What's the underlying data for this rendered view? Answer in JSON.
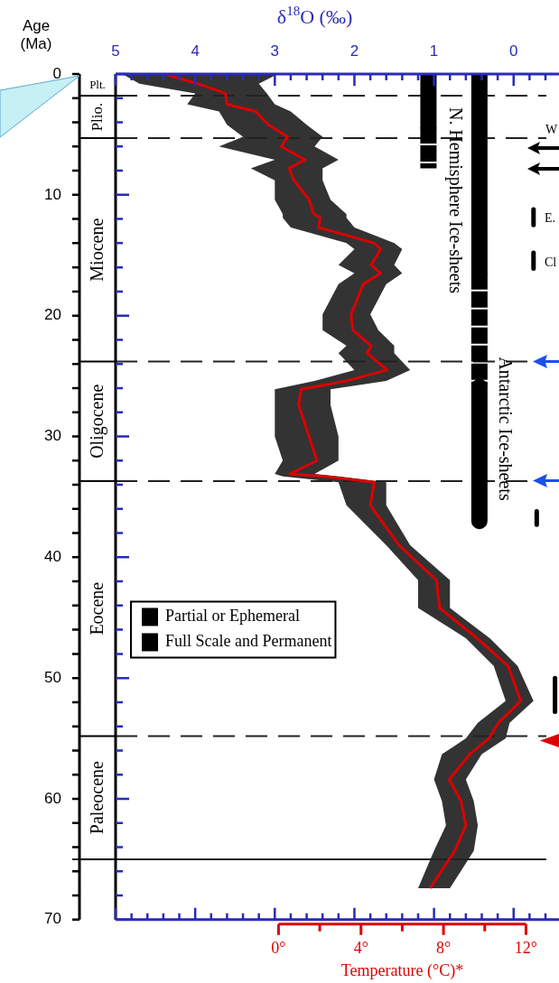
{
  "chart_data": {
    "type": "line",
    "orientation": "horizontal",
    "xlabel": "δ$^{18}$O (‰)",
    "ylabel": "Age (Ma)",
    "x2label": "Temperature (°C)*",
    "xlim": [
      5,
      -0.57
    ],
    "ylim": [
      70,
      0
    ],
    "x2lim": [
      -7.9,
      13.6
    ],
    "xticks": [
      5,
      {
        "value": 4.8,
        "label": null
      },
      {
        "value": 4.6,
        "label": null
      },
      {
        "value": 4.4,
        "label": null
      },
      {
        "value": 4.2,
        "label": null
      },
      4,
      {
        "value": 3.8,
        "label": null
      },
      {
        "value": 3.6,
        "label": null
      },
      {
        "value": 3.4,
        "label": null
      },
      {
        "value": 3.2,
        "label": null
      },
      3,
      {
        "value": 2.8,
        "label": null
      },
      {
        "value": 2.6,
        "label": null
      },
      {
        "value": 2.4,
        "label": null
      },
      {
        "value": 2.2,
        "label": null
      },
      2,
      {
        "value": 1.8,
        "label": null
      },
      {
        "value": 1.6,
        "label": null
      },
      {
        "value": 1.4,
        "label": null
      },
      {
        "value": 1.2,
        "label": null
      },
      1,
      {
        "value": 0.8,
        "label": null
      },
      {
        "value": 0.6,
        "label": null
      },
      {
        "value": 0.4,
        "label": null
      },
      {
        "value": 0.2,
        "label": null
      },
      0,
      {
        "value": -0.2,
        "label": null
      },
      {
        "value": -0.4,
        "label": null
      }
    ],
    "yticks": [
      0,
      {
        "value": 2,
        "label": null
      },
      {
        "value": 4,
        "label": null
      },
      {
        "value": 6,
        "label": null
      },
      {
        "value": 8,
        "label": null
      },
      10,
      {
        "value": 12,
        "label": null
      },
      {
        "value": 14,
        "label": null
      },
      {
        "value": 16,
        "label": null
      },
      {
        "value": 18,
        "label": null
      },
      20,
      {
        "value": 22,
        "label": null
      },
      {
        "value": 24,
        "label": null
      },
      {
        "value": 26,
        "label": null
      },
      {
        "value": 28,
        "label": null
      },
      30,
      {
        "value": 32,
        "label": null
      },
      {
        "value": 34,
        "label": null
      },
      {
        "value": 36,
        "label": null
      },
      {
        "value": 38,
        "label": null
      },
      40,
      {
        "value": 42,
        "label": null
      },
      {
        "value": 44,
        "label": null
      },
      {
        "value": 46,
        "label": null
      },
      {
        "value": 48,
        "label": null
      },
      50,
      {
        "value": 52,
        "label": null
      },
      {
        "value": 54,
        "label": null
      },
      {
        "value": 56,
        "label": null
      },
      {
        "value": 58,
        "label": null
      },
      60,
      {
        "value": 62,
        "label": null
      },
      {
        "value": 64,
        "label": null
      },
      {
        "value": 66,
        "label": null
      },
      {
        "value": 68,
        "label": null
      },
      70
    ],
    "x2ticks": [
      {
        "value": 0,
        "label": "0°"
      },
      {
        "value": 2,
        "label": null
      },
      {
        "value": 4,
        "label": "4°"
      },
      {
        "value": 6,
        "label": null
      },
      {
        "value": 8,
        "label": "8°"
      },
      {
        "value": 10,
        "label": null
      },
      {
        "value": 12,
        "label": "12°"
      }
    ],
    "series": [
      {
        "color": "#dd0000",
        "x": [
          0.05,
          0.8,
          1.6,
          2.5,
          3.1,
          4.2,
          5.2,
          6.0,
          7.1,
          7.8,
          8.8,
          10.4,
          11.6,
          11.9,
          12.7,
          14.0,
          14.5,
          15.8,
          16.5,
          17.4,
          19.9,
          21.2,
          22.5,
          23.1,
          24.5,
          25.4,
          26.1,
          27.4,
          30.0,
          32.0,
          33.1,
          33.3,
          33.8,
          35.7,
          39.0,
          41.9,
          44.2,
          46.7,
          49.0,
          51.9,
          53.7,
          55.0,
          56.3,
          58.4,
          60.2,
          62.2,
          64.3,
          67.4
        ],
        "values": [
          4.36,
          3.97,
          3.62,
          3.6,
          3.24,
          3.08,
          2.84,
          2.92,
          2.62,
          2.82,
          2.76,
          2.57,
          2.51,
          2.43,
          2.45,
          1.75,
          1.67,
          1.79,
          1.67,
          1.89,
          2.04,
          2.02,
          1.79,
          1.84,
          1.59,
          2.1,
          2.67,
          2.7,
          2.57,
          2.47,
          2.81,
          2.38,
          1.75,
          1.8,
          1.44,
          0.97,
          0.93,
          0.46,
          0.07,
          -0.09,
          0.19,
          0.31,
          0.55,
          0.81,
          0.66,
          0.6,
          0.74,
          1.05
        ],
        "lower": [
          2.98,
          3.2,
          3.1,
          3.0,
          2.8,
          2.6,
          2.4,
          2.5,
          2.2,
          2.4,
          2.4,
          2.3,
          2.1,
          2.1,
          2.0,
          1.5,
          1.4,
          1.5,
          1.4,
          1.6,
          1.8,
          1.7,
          1.5,
          1.5,
          1.3,
          1.6,
          2.3,
          2.3,
          2.2,
          2.2,
          2.5,
          2.2,
          1.6,
          1.6,
          1.3,
          0.8,
          0.8,
          0.3,
          -0.05,
          -0.25,
          0.05,
          0.1,
          0.4,
          0.6,
          0.5,
          0.45,
          0.5,
          0.8
        ],
        "upper": [
          4.9,
          4.7,
          4.0,
          4.1,
          3.7,
          3.6,
          3.4,
          3.7,
          3.0,
          3.3,
          3.0,
          3.0,
          2.9,
          2.9,
          2.8,
          2.1,
          2.0,
          2.2,
          2.0,
          2.2,
          2.4,
          2.4,
          2.1,
          2.2,
          2.0,
          2.5,
          3.0,
          3.0,
          3.0,
          2.9,
          3.0,
          2.9,
          2.2,
          2.1,
          1.6,
          1.2,
          1.2,
          0.6,
          0.25,
          0.1,
          0.45,
          0.6,
          0.9,
          1.0,
          0.9,
          0.85,
          1.0,
          1.2
        ]
      },
      {
        "name": "Partial or Ephemeral",
        "color": "#000000",
        "line_style": "dashed",
        "x": [
          4.4,
          7.8,
          null,
          16.5,
          25.9
        ],
        "values": [
          1.07,
          1.07,
          null,
          0.43,
          0.43
        ]
      },
      {
        "name": "Full Scale and Permanent",
        "color": "#000000",
        "x": [
          0,
          4.4,
          null,
          0,
          16.5,
          null,
          25.9,
          37.0
        ],
        "values": [
          1.07,
          1.07,
          null,
          0.43,
          0.43,
          null,
          0.43,
          0.43
        ]
      },
      {
        "color": "#000000",
        "x": [
          11.2,
          12.5,
          null,
          14.8,
          16.1,
          null,
          36.2,
          37.3,
          null,
          50,
          52.8
        ],
        "values": [
          -0.25,
          -0.25,
          null,
          -0.25,
          -0.25,
          null,
          -0.29,
          -0.29,
          null,
          -0.52,
          -0.52
        ]
      }
    ],
    "legend": "left",
    "ref_lines": [
      {
        "axis": "y",
        "value": 1.8,
        "line_style": "dashed"
      },
      {
        "axis": "y",
        "value": 5.3,
        "line_style": "dashed"
      },
      {
        "axis": "y",
        "value": 23.8,
        "line_style": "dashed"
      },
      {
        "axis": "y",
        "value": 33.7,
        "line_style": "dashed"
      },
      {
        "axis": "y",
        "value": 54.8,
        "line_style": "dashed"
      },
      {
        "axis": "y",
        "value": 65,
        "line_style": "solid"
      }
    ],
    "annotations": [
      "Plt.",
      "Plio.",
      "Miocene",
      "Oligocene",
      "Eocene",
      "Paleocene",
      "N. Hemisphere Ice-sheets",
      "Antarctic Ice-sheets",
      "W",
      "E.",
      "Cl"
    ]
  }
}
